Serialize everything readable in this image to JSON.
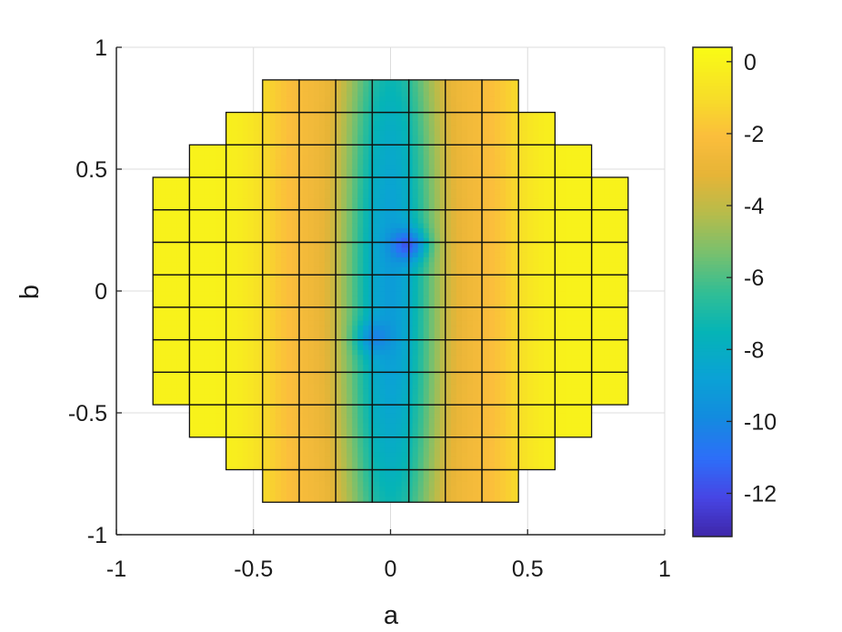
{
  "chart_data": {
    "type": "heatmap",
    "title": "",
    "xlabel": "a",
    "ylabel": "b",
    "xlim": [
      -1,
      1
    ],
    "ylim": [
      -1,
      1
    ],
    "xticks": [
      -1,
      -0.5,
      0,
      0.5,
      1
    ],
    "yticks": [
      -1,
      -0.5,
      0,
      0.5,
      1
    ],
    "xtick_labels": [
      "-1",
      "-0.5",
      "0",
      "0.5",
      "1"
    ],
    "ytick_labels": [
      "-1",
      "-0.5",
      "0",
      "0.5",
      "1"
    ],
    "grid": true,
    "colormap": "parula",
    "colorbar": {
      "placement": "right",
      "range": [
        -13.2,
        0.4
      ],
      "ticks": [
        0,
        -2,
        -4,
        -6,
        -8,
        -10,
        -12
      ],
      "tick_labels": [
        "0",
        "-2",
        "-4",
        "-6",
        "-8",
        "-10",
        "-12"
      ]
    },
    "cells": {
      "cell_size": 0.1333,
      "columns": [
        {
          "x_center": -0.8,
          "b_range": [
            -0.4667,
            0.4667
          ]
        },
        {
          "x_center": -0.6667,
          "b_range": [
            -0.6,
            0.6
          ]
        },
        {
          "x_center": -0.5333,
          "b_range": [
            -0.7333,
            0.7333
          ]
        },
        {
          "x_center": -0.4,
          "b_range": [
            -0.8667,
            0.8667
          ]
        },
        {
          "x_center": -0.2667,
          "b_range": [
            -0.8667,
            0.8667
          ]
        },
        {
          "x_center": -0.1333,
          "b_range": [
            -0.8667,
            0.8667
          ]
        },
        {
          "x_center": 0.0,
          "b_range": [
            -0.8667,
            0.8667
          ]
        },
        {
          "x_center": 0.1333,
          "b_range": [
            -0.8667,
            0.8667
          ]
        },
        {
          "x_center": 0.2667,
          "b_range": [
            -0.8667,
            0.8667
          ]
        },
        {
          "x_center": 0.4,
          "b_range": [
            -0.8667,
            0.8667
          ]
        },
        {
          "x_center": 0.5333,
          "b_range": [
            -0.7333,
            0.7333
          ]
        },
        {
          "x_center": 0.6667,
          "b_range": [
            -0.6,
            0.6
          ]
        },
        {
          "x_center": 0.8,
          "b_range": [
            -0.4667,
            0.4667
          ]
        }
      ]
    },
    "field": {
      "minima": [
        {
          "a": 0.07,
          "b": 0.19,
          "value": -13.0
        },
        {
          "a": -0.07,
          "b": -0.19,
          "value": -11.5
        }
      ],
      "center_value": -10,
      "edge_value": 0,
      "band_value_at_a_0.35": -1.8
    }
  }
}
